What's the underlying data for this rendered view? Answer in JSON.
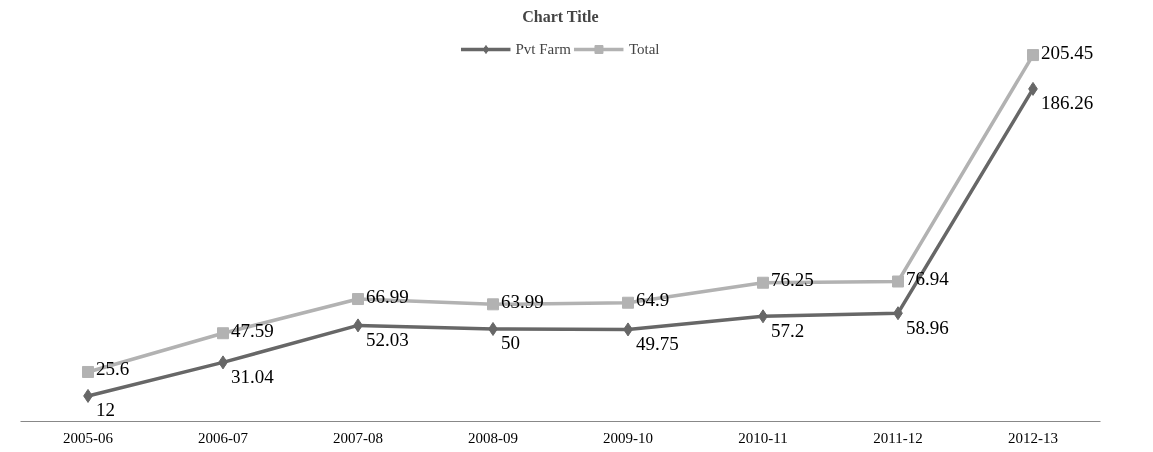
{
  "chart_data": {
    "type": "line",
    "title": "Chart Title",
    "categories": [
      "2005-06",
      "2006-07",
      "2007-08",
      "2008-09",
      "2009-10",
      "2010-11",
      "2011-12",
      "2012-13"
    ],
    "series": [
      {
        "name": "Pvt Farm",
        "color": "#676767",
        "marker": "diamond",
        "values": [
          12,
          31.04,
          52.03,
          50,
          49.75,
          57.2,
          58.96,
          186.26
        ]
      },
      {
        "name": "Total",
        "color": "#b2b2b2",
        "marker": "square",
        "values": [
          25.6,
          47.59,
          66.99,
          63.99,
          64.9,
          76.25,
          76.94,
          205.45
        ]
      }
    ],
    "data_labels": true,
    "legend": "top",
    "grid": false,
    "line_style": "solid"
  }
}
